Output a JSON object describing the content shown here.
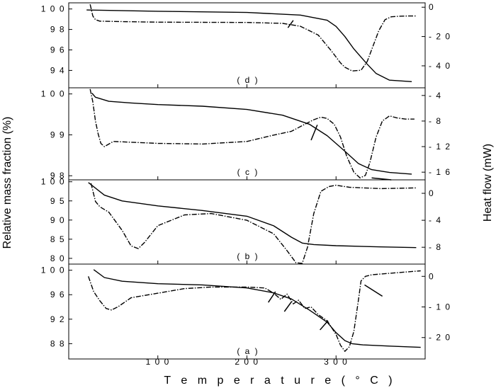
{
  "chart_data": {
    "type": "line",
    "xlabel": "T e m p e r a t u r e   ( ° C )",
    "ylabel_left": "Relative mass fraction (%)",
    "ylabel_right": "Heat flow (mW)",
    "xlim": [
      0,
      400
    ],
    "x_ticks": [
      {
        "label": "1 0 0",
        "v": 100
      },
      {
        "label": "2 0 0",
        "v": 200
      },
      {
        "label": "3 0 0",
        "v": 300
      }
    ],
    "grid": false,
    "panels": [
      {
        "label": "( d )",
        "ylim_left": [
          92.3,
          100.6
        ],
        "ylim_right": [
          -55,
          3
        ],
        "left_ticks": [
          {
            "label": "1 0 0",
            "v": 100
          },
          {
            "label": "9 8",
            "v": 98
          },
          {
            "label": "9 6",
            "v": 96
          },
          {
            "label": "9 4",
            "v": 94
          }
        ],
        "right_ticks": [
          {
            "label": "0",
            "v": 0
          },
          {
            "label": "- 2 0",
            "v": -20
          },
          {
            "label": "- 4 0",
            "v": -40
          }
        ],
        "series": [
          {
            "axis": "left",
            "style": "solid",
            "x": [
              20,
              100,
              200,
              260,
              290,
              300,
              310,
              320,
              335,
              345,
              360,
              385
            ],
            "y": [
              99.9,
              99.78,
              99.66,
              99.4,
              98.9,
              98.3,
              97.3,
              96.1,
              94.6,
              93.7,
              93.05,
              92.9
            ]
          },
          {
            "axis": "right",
            "style": "dash-dot",
            "x": [
              24,
              27,
              30,
              35,
              60,
              100,
              150,
              200,
              240,
              260,
              280,
              295,
              305,
              310,
              318,
              328,
              335,
              340,
              348,
              355,
              362,
              370,
              380,
              390
            ],
            "y": [
              2,
              -6,
              -8.5,
              -9.5,
              -9.8,
              -10.2,
              -10.3,
              -10.4,
              -11,
              -13,
              -19,
              -30,
              -38,
              -41,
              -43.5,
              -43,
              -37,
              -29,
              -16,
              -8.5,
              -6.5,
              -6.2,
              -6,
              -6
            ]
          }
        ]
      },
      {
        "label": "( c )",
        "ylim_left": [
          97.9,
          100.15
        ],
        "ylim_right": [
          -17.2,
          -2.8
        ],
        "left_ticks": [
          {
            "label": "1 0 0",
            "v": 100
          },
          {
            "label": "9 9",
            "v": 99
          },
          {
            "label": "9 8",
            "v": 98
          }
        ],
        "right_ticks": [
          {
            "label": "- 4",
            "v": -4
          },
          {
            "label": "- 8",
            "v": -8
          },
          {
            "label": "- 1 2",
            "v": -12
          },
          {
            "label": "- 1 6",
            "v": -16
          }
        ],
        "series": [
          {
            "axis": "left",
            "style": "solid",
            "x": [
              26,
              30,
              45,
              70,
              100,
              150,
              200,
              240,
              270,
              290,
              310,
              325,
              340,
              360,
              385
            ],
            "y": [
              100.02,
              99.92,
              99.82,
              99.78,
              99.74,
              99.7,
              99.62,
              99.48,
              99.26,
              98.98,
              98.6,
              98.3,
              98.15,
              98.08,
              98.04
            ]
          },
          {
            "axis": "right",
            "style": "dash-dot",
            "x": [
              24,
              27,
              30,
              33,
              36,
              40,
              50,
              100,
              150,
              200,
              230,
              250,
              265,
              275,
              283,
              290,
              298,
              305,
              312,
              320,
              327,
              333,
              338,
              345,
              352,
              360,
              368,
              378,
              388
            ],
            "y": [
              -3,
              -5,
              -8,
              -10,
              -11.5,
              -12,
              -11.2,
              -11.5,
              -11.6,
              -11.2,
              -10.2,
              -9.6,
              -8.5,
              -7.8,
              -7.4,
              -7.6,
              -8.5,
              -10.5,
              -13.5,
              -16,
              -16.9,
              -16.5,
              -14.5,
              -10.5,
              -8,
              -7.2,
              -7.5,
              -7.7,
              -7.7
            ]
          }
        ]
      },
      {
        "label": "( b )",
        "ylim_left": [
          78.5,
          100.5
        ],
        "ylim_right": [
          -10.5,
          2
        ],
        "left_ticks": [
          {
            "label": "1 0 0",
            "v": 100
          },
          {
            "label": "9 5",
            "v": 95
          },
          {
            "label": "9 0",
            "v": 90
          },
          {
            "label": "8 5",
            "v": 85
          },
          {
            "label": "8 0",
            "v": 80
          }
        ],
        "right_ticks": [
          {
            "label": "0",
            "v": 0
          },
          {
            "label": "- 4",
            "v": -4
          },
          {
            "label": "- 8",
            "v": -8
          }
        ],
        "series": [
          {
            "axis": "left",
            "style": "solid",
            "x": [
              22,
              40,
              60,
              100,
              150,
              200,
              230,
              250,
              262,
              275,
              300,
              350,
              390
            ],
            "y": [
              99.8,
              96.5,
              95,
              93.7,
              92.5,
              91,
              88.5,
              85.5,
              84,
              83.6,
              83.3,
              83,
              82.8
            ]
          },
          {
            "axis": "right",
            "style": "dash-dot",
            "x": [
              25,
              30,
              35,
              45,
              60,
              70,
              78,
              85,
              100,
              130,
              160,
              200,
              230,
              245,
              255,
              262,
              268,
              275,
              283,
              292,
              300,
              315,
              350,
              390
            ],
            "y": [
              1.5,
              -1.2,
              -2,
              -2.8,
              -5.5,
              -7.8,
              -8.2,
              -7.3,
              -4.8,
              -3.2,
              -3,
              -4,
              -6,
              -8.5,
              -10.3,
              -10.4,
              -8,
              -3,
              0.3,
              1,
              1.2,
              0.9,
              0.7,
              0.8
            ]
          }
        ]
      },
      {
        "label": "( a )",
        "ylim_left": [
          85.5,
          101
        ],
        "ylim_right": [
          -27,
          4
        ],
        "left_ticks": [
          {
            "label": "1 0 0",
            "v": 100
          },
          {
            "label": "9 6",
            "v": 96
          },
          {
            "label": "9 2",
            "v": 92
          },
          {
            "label": "8 8",
            "v": 88
          }
        ],
        "right_ticks": [
          {
            "label": "0",
            "v": 0
          },
          {
            "label": "- 1 0",
            "v": -10
          },
          {
            "label": "- 2 0",
            "v": -20
          }
        ],
        "series": [
          {
            "axis": "left",
            "style": "solid",
            "x": [
              28,
              40,
              60,
              100,
              150,
              200,
              230,
              250,
              270,
              290,
              300,
              310,
              318,
              330,
              360,
              395
            ],
            "y": [
              100.1,
              98.8,
              98.2,
              97.8,
              97.6,
              97.1,
              96.3,
              95.3,
              93.5,
              91.5,
              89.8,
              88.5,
              88,
              87.8,
              87.6,
              87.4
            ]
          },
          {
            "axis": "right",
            "style": "dash-dot",
            "x": [
              22,
              28,
              35,
              42,
              48,
              55,
              70,
              100,
              130,
              160,
              200,
              220,
              230,
              238,
              245,
              252,
              258,
              265,
              272,
              280,
              290,
              300,
              305,
              310,
              315,
              320,
              325,
              328,
              333,
              340,
              360,
              395
            ],
            "y": [
              0,
              -5,
              -8,
              -10.5,
              -11,
              -10,
              -7,
              -5.5,
              -4,
              -3.5,
              -3.5,
              -3.8,
              -5.5,
              -7.5,
              -5.8,
              -9,
              -7.8,
              -10.5,
              -10,
              -12.5,
              -14.5,
              -19,
              -22.5,
              -24.5,
              -23,
              -18,
              -8,
              -1.5,
              0,
              0.5,
              1,
              1.8
            ]
          }
        ]
      }
    ],
    "annotations": [
      {
        "panel": 0,
        "type": "arrow",
        "x1": 246,
        "y1": -14,
        "x2": 252,
        "y2": -9
      },
      {
        "panel": 1,
        "type": "arrow",
        "x1": 272,
        "y1": -11,
        "x2": 279,
        "y2": -8.6
      },
      {
        "panel": 1,
        "type": "arrow",
        "x1": 340,
        "y1": -16.9,
        "x2": 362,
        "y2": -17.2
      },
      {
        "panel": 3,
        "type": "arrow",
        "x1": 224,
        "y1": -8.5,
        "x2": 232,
        "y2": -5
      },
      {
        "panel": 3,
        "type": "arrow",
        "x1": 242,
        "y1": -11.5,
        "x2": 250,
        "y2": -8.3
      },
      {
        "panel": 3,
        "type": "arrow",
        "x1": 282,
        "y1": -17.5,
        "x2": 291,
        "y2": -14.5
      },
      {
        "panel": 3,
        "type": "arrow",
        "x1": 352,
        "y1": -6.5,
        "x2": 332,
        "y2": -2.8
      }
    ]
  }
}
